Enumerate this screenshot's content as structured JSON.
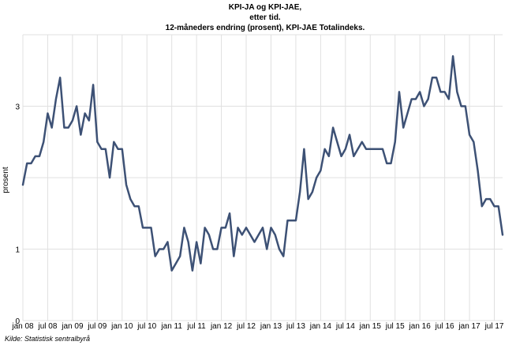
{
  "chart_data": {
    "type": "line",
    "title": [
      "KPI-JA og KPI-JAE,",
      "etter tid.",
      "12-måneders endring (prosent), KPI-JAE Totalindeks."
    ],
    "ylabel": "prosent",
    "xlabel": "",
    "ylim": [
      0,
      4
    ],
    "yticks": [
      0,
      1,
      3
    ],
    "grid": true,
    "x_ticks": [
      "jan 08",
      "jul 08",
      "jan 09",
      "jul 09",
      "jan 10",
      "jul 10",
      "jan 11",
      "jul 11",
      "jan 12",
      "jul 12",
      "jan 13",
      "jul 13",
      "jan 14",
      "jul 14",
      "jan 15",
      "jul 15",
      "jan 16",
      "jul 16",
      "jan 17",
      "jul 17"
    ],
    "x_start": "2008-01",
    "x_end": "2017-07",
    "series": [
      {
        "color": "#3d5175",
        "values": [
          1.9,
          2.2,
          2.2,
          2.3,
          2.3,
          2.5,
          2.9,
          2.7,
          3.1,
          3.4,
          2.7,
          2.7,
          2.8,
          3.0,
          2.6,
          2.9,
          2.8,
          3.3,
          2.5,
          2.4,
          2.4,
          2.0,
          2.5,
          2.4,
          2.4,
          1.9,
          1.7,
          1.6,
          1.6,
          1.3,
          1.3,
          1.3,
          0.9,
          1.0,
          1.0,
          1.1,
          0.7,
          0.8,
          0.9,
          1.3,
          1.1,
          0.7,
          1.1,
          0.8,
          1.3,
          1.2,
          1.0,
          1.0,
          1.3,
          1.3,
          1.5,
          0.9,
          1.3,
          1.2,
          1.3,
          1.2,
          1.1,
          1.2,
          1.3,
          1.0,
          1.3,
          1.2,
          1.0,
          0.9,
          1.4,
          1.4,
          1.4,
          1.8,
          2.4,
          1.7,
          1.8,
          2.0,
          2.1,
          2.4,
          2.3,
          2.7,
          2.5,
          2.3,
          2.4,
          2.6,
          2.3,
          2.4,
          2.5,
          2.4,
          2.4,
          2.4,
          2.4,
          2.4,
          2.2,
          2.2,
          2.5,
          3.2,
          2.7,
          2.9,
          3.1,
          3.1,
          3.2,
          3.0,
          3.1,
          3.4,
          3.4,
          3.2,
          3.2,
          3.1,
          3.7,
          3.2,
          3.0,
          3.0,
          2.6,
          2.5,
          2.1,
          1.6,
          1.7,
          1.7,
          1.6,
          1.6,
          1.2
        ]
      }
    ]
  },
  "source": "Kilde: Statistisk sentralbyrå"
}
